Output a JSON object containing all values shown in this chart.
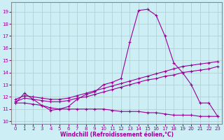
{
  "xlabel": "Windchill (Refroidissement éolien,°C)",
  "background_color": "#cdeef5",
  "grid_color": "#aacccc",
  "line_color": "#990099",
  "xlim": [
    -0.5,
    23.5
  ],
  "ylim": [
    9.8,
    19.8
  ],
  "yticks": [
    10,
    11,
    12,
    13,
    14,
    15,
    16,
    17,
    18,
    19
  ],
  "xticks": [
    0,
    1,
    2,
    3,
    4,
    5,
    6,
    7,
    8,
    9,
    10,
    11,
    12,
    13,
    14,
    15,
    16,
    17,
    18,
    19,
    20,
    21,
    22,
    23
  ],
  "series": [
    {
      "x": [
        0,
        1,
        2,
        3,
        4,
        5,
        6,
        7,
        8,
        9,
        10,
        11,
        12,
        13,
        14,
        15,
        16,
        17,
        18,
        19,
        20,
        21,
        22,
        23
      ],
      "y": [
        11.5,
        12.3,
        11.8,
        11.3,
        10.9,
        11.0,
        11.2,
        11.8,
        12.2,
        12.4,
        13.0,
        13.2,
        13.5,
        16.5,
        19.1,
        19.2,
        18.7,
        17.0,
        14.8,
        14.0,
        13.0,
        11.5,
        11.5,
        10.4
      ]
    },
    {
      "x": [
        0,
        1,
        2,
        3,
        4,
        5,
        6,
        7,
        8,
        9,
        10,
        11,
        12,
        13,
        14,
        15,
        16,
        17,
        18,
        19,
        20,
        21,
        22,
        23
      ],
      "y": [
        11.8,
        12.1,
        12.0,
        11.9,
        11.8,
        11.8,
        11.9,
        12.1,
        12.3,
        12.5,
        12.7,
        12.9,
        13.1,
        13.3,
        13.5,
        13.7,
        13.9,
        14.1,
        14.3,
        14.5,
        14.6,
        14.7,
        14.8,
        14.9
      ]
    },
    {
      "x": [
        0,
        1,
        2,
        3,
        4,
        5,
        6,
        7,
        8,
        9,
        10,
        11,
        12,
        13,
        14,
        15,
        16,
        17,
        18,
        19,
        20,
        21,
        22,
        23
      ],
      "y": [
        11.6,
        11.9,
        11.8,
        11.7,
        11.6,
        11.6,
        11.7,
        11.9,
        12.0,
        12.2,
        12.4,
        12.6,
        12.8,
        13.0,
        13.2,
        13.4,
        13.5,
        13.7,
        13.8,
        14.0,
        14.1,
        14.2,
        14.3,
        14.5
      ]
    },
    {
      "x": [
        0,
        1,
        2,
        3,
        4,
        5,
        6,
        7,
        8,
        9,
        10,
        11,
        12,
        13,
        14,
        15,
        16,
        17,
        18,
        19,
        20,
        21,
        22,
        23
      ],
      "y": [
        11.5,
        11.5,
        11.4,
        11.3,
        11.1,
        11.0,
        11.0,
        11.0,
        11.0,
        11.0,
        11.0,
        10.9,
        10.8,
        10.8,
        10.8,
        10.7,
        10.7,
        10.6,
        10.5,
        10.5,
        10.5,
        10.4,
        10.4,
        10.4
      ]
    }
  ]
}
